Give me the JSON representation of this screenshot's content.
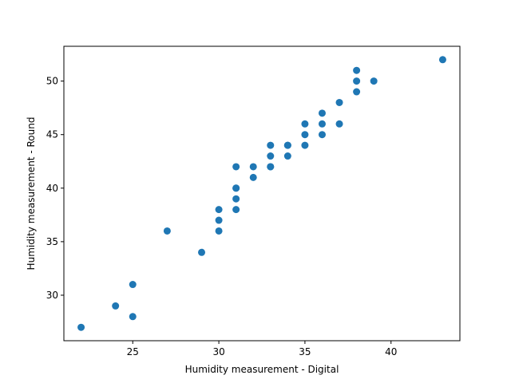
{
  "chart_data": {
    "type": "scatter",
    "title": "",
    "xlabel": "Humidity measurement - Digital",
    "ylabel": "Humidity measurement - Round",
    "xlim": [
      21.0,
      44.0
    ],
    "ylim": [
      25.75,
      53.25
    ],
    "xticks": [
      25,
      30,
      35,
      40
    ],
    "yticks": [
      30,
      35,
      40,
      45,
      50
    ],
    "grid": false,
    "marker_color": "#1f77b4",
    "series": [
      {
        "points": [
          [
            22,
            27
          ],
          [
            24,
            29
          ],
          [
            25,
            31
          ],
          [
            25,
            28
          ],
          [
            27,
            36
          ],
          [
            29,
            34
          ],
          [
            30,
            38
          ],
          [
            30,
            37
          ],
          [
            30,
            36
          ],
          [
            31,
            42
          ],
          [
            31,
            40
          ],
          [
            31,
            40
          ],
          [
            31,
            39
          ],
          [
            31,
            38
          ],
          [
            32,
            42
          ],
          [
            32,
            41
          ],
          [
            33,
            44
          ],
          [
            33,
            43
          ],
          [
            33,
            42
          ],
          [
            33,
            42
          ],
          [
            34,
            44
          ],
          [
            34,
            44
          ],
          [
            34,
            43
          ],
          [
            35,
            46
          ],
          [
            35,
            45
          ],
          [
            35,
            44
          ],
          [
            36,
            47
          ],
          [
            36,
            46
          ],
          [
            36,
            45
          ],
          [
            37,
            48
          ],
          [
            37,
            46
          ],
          [
            38,
            51
          ],
          [
            38,
            50
          ],
          [
            38,
            49
          ],
          [
            39,
            50
          ],
          [
            43,
            52
          ]
        ]
      }
    ]
  }
}
